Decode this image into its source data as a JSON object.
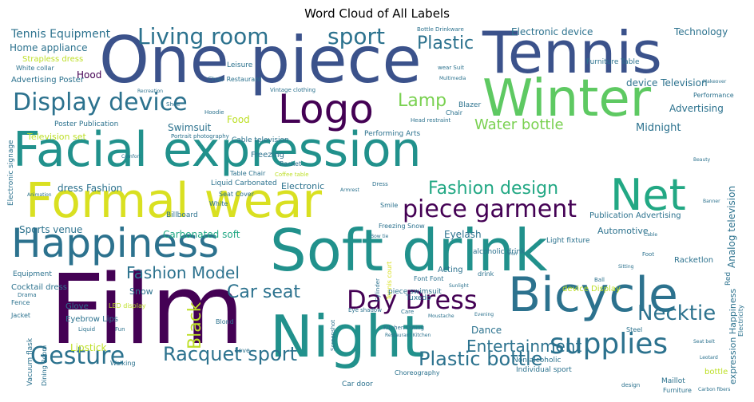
{
  "title": "Word Cloud of All Labels",
  "palette": [
    "#440154",
    "#3b528b",
    "#21918c",
    "#5ec962",
    "#fde725"
  ],
  "words": [
    {
      "text": "Facial expression",
      "color": "#21918c"
    },
    {
      "text": "Soft drink",
      "color": "#21918c"
    },
    {
      "text": "Film",
      "color": "#440154"
    },
    {
      "text": "Night",
      "color": "#21918c"
    },
    {
      "text": "One piece",
      "color": "#3b528b"
    },
    {
      "text": "Tennis",
      "color": "#3b528b"
    },
    {
      "text": "Formal wear",
      "color": "#d9e021"
    },
    {
      "text": "Happiness",
      "color": "#2c728e"
    },
    {
      "text": "Bicycle",
      "color": "#2c728e"
    },
    {
      "text": "Winter",
      "color": "#5ec962"
    },
    {
      "text": "Logo",
      "color": "#440154"
    },
    {
      "text": "Net",
      "color": "#22a884"
    },
    {
      "text": "Display device",
      "color": "#2c728e"
    },
    {
      "text": "Living room",
      "color": "#2c728e"
    },
    {
      "text": "piece garment",
      "color": "#440154"
    },
    {
      "text": "Day Dress",
      "color": "#440154"
    },
    {
      "text": "Gesture",
      "color": "#2c728e"
    },
    {
      "text": "supplies",
      "color": "#2c728e"
    },
    {
      "text": "Racquet sport",
      "color": "#2c728e"
    },
    {
      "text": "Plastic bottle",
      "color": "#2c728e"
    },
    {
      "text": "Fashion design",
      "color": "#22a884"
    },
    {
      "text": "Entertainment",
      "color": "#2c728e"
    },
    {
      "text": "Necktie",
      "color": "#2c728e"
    },
    {
      "text": "Car seat",
      "color": "#2c728e"
    },
    {
      "text": "Fashion Model",
      "color": "#2c728e"
    },
    {
      "text": "sport",
      "color": "#2c728e"
    },
    {
      "text": "Plastic",
      "color": "#2c728e"
    },
    {
      "text": "Lamp",
      "color": "#7ad151"
    },
    {
      "text": "Water bottle",
      "color": "#7ad151"
    },
    {
      "text": "Black",
      "color": "#bddf26"
    },
    {
      "text": "Tennis Equipment",
      "color": "#2c728e"
    },
    {
      "text": "Home appliance",
      "color": "#2c728e"
    },
    {
      "text": "Strapless dress",
      "color": "#bddf26"
    },
    {
      "text": "White collar",
      "color": "#2c728e"
    },
    {
      "text": "Advertising Poster",
      "color": "#2c728e"
    },
    {
      "text": "Hood",
      "color": "#440154"
    },
    {
      "text": "Electronic device",
      "color": "#2c728e"
    },
    {
      "text": "Technology",
      "color": "#2c728e"
    },
    {
      "text": "Advertising",
      "color": "#2c728e"
    },
    {
      "text": "Midnight",
      "color": "#2c728e"
    },
    {
      "text": "device Television",
      "color": "#2c728e"
    },
    {
      "text": "Furniture Table",
      "color": "#2c728e"
    },
    {
      "text": "Performance",
      "color": "#2c728e"
    },
    {
      "text": "Swimsuit",
      "color": "#2c728e"
    },
    {
      "text": "Food",
      "color": "#bddf26"
    },
    {
      "text": "Television set",
      "color": "#bddf26"
    },
    {
      "text": "Poster Publication",
      "color": "#2c728e"
    },
    {
      "text": "Sports venue",
      "color": "#2c728e"
    },
    {
      "text": "dress Fashion",
      "color": "#2c728e"
    },
    {
      "text": "Carbonated soft",
      "color": "#22a884"
    },
    {
      "text": "Equipment",
      "color": "#2c728e"
    },
    {
      "text": "Cocktail dress",
      "color": "#2c728e"
    },
    {
      "text": "Snow",
      "color": "#2c728e"
    },
    {
      "text": "Lipstick",
      "color": "#bddf26"
    },
    {
      "text": "Glove",
      "color": "#2c728e"
    },
    {
      "text": "Eyebrow Lips",
      "color": "#2c728e"
    },
    {
      "text": "Eyelash",
      "color": "#2c728e"
    },
    {
      "text": "Acting",
      "color": "#2c728e"
    },
    {
      "text": "Tuxedo",
      "color": "#2c728e"
    },
    {
      "text": "Dance",
      "color": "#2c728e"
    },
    {
      "text": "Analog television",
      "color": "#2c728e"
    },
    {
      "text": "Publication Advertising",
      "color": "#2c728e"
    },
    {
      "text": "Automotive",
      "color": "#2c728e"
    },
    {
      "text": "Light fixture",
      "color": "#2c728e"
    },
    {
      "text": "expression Happiness",
      "color": "#2c728e"
    },
    {
      "text": "Electronic",
      "color": "#2c728e"
    },
    {
      "text": "Freezing",
      "color": "#2c728e"
    },
    {
      "text": "Cable television",
      "color": "#2c728e"
    },
    {
      "text": "Billboard",
      "color": "#2c728e"
    },
    {
      "text": "Leisure",
      "color": "#2c728e"
    },
    {
      "text": "Blazer",
      "color": "#2c728e"
    },
    {
      "text": "Chair Restaurant",
      "color": "#2c728e"
    },
    {
      "text": "Vintage clothing",
      "color": "#2c728e"
    },
    {
      "text": "Performing Arts",
      "color": "#2c728e"
    },
    {
      "text": "Racket",
      "color": "#2c728e"
    },
    {
      "text": "Table Chair",
      "color": "#2c728e"
    },
    {
      "text": "Liquid Carbonated",
      "color": "#2c728e"
    },
    {
      "text": "Seat Cover",
      "color": "#2c728e"
    },
    {
      "text": "White",
      "color": "#2c728e"
    },
    {
      "text": "Freezing Snow",
      "color": "#2c728e"
    },
    {
      "text": "Blond",
      "color": "#2c728e"
    },
    {
      "text": "Walking",
      "color": "#2c728e"
    },
    {
      "text": "Love",
      "color": "#2c728e"
    },
    {
      "text": "Car door",
      "color": "#2c728e"
    },
    {
      "text": "Choreography",
      "color": "#2c728e"
    },
    {
      "text": "Maillot",
      "color": "#2c728e"
    },
    {
      "text": "Furniture",
      "color": "#2c728e"
    },
    {
      "text": "Vacuum flask",
      "color": "#2c728e"
    },
    {
      "text": "Dining Room",
      "color": "#2c728e"
    },
    {
      "text": "Fence",
      "color": "#2c728e"
    },
    {
      "text": "Jacket",
      "color": "#2c728e"
    },
    {
      "text": "Drama",
      "color": "#2c728e"
    },
    {
      "text": "Fun",
      "color": "#2c728e"
    },
    {
      "text": "Liquid",
      "color": "#2c728e"
    },
    {
      "text": "LED display",
      "color": "#bddf26"
    },
    {
      "text": "Kitchen Dining",
      "color": "#2c728e"
    },
    {
      "text": "Individual sport",
      "color": "#2c728e"
    },
    {
      "text": "Non alcoholic",
      "color": "#2c728e"
    },
    {
      "text": "piece swimsuit",
      "color": "#2c728e"
    },
    {
      "text": "Font Font",
      "color": "#2c728e"
    },
    {
      "text": "alcoholic drink",
      "color": "#2c728e"
    },
    {
      "text": "Racketlon",
      "color": "#2c728e"
    },
    {
      "text": "device Display",
      "color": "#bddf26"
    },
    {
      "text": "bottle",
      "color": "#2c728e"
    },
    {
      "text": "Steel",
      "color": "#2c728e"
    },
    {
      "text": "Hoodie",
      "color": "#2c728e"
    },
    {
      "text": "Shoe",
      "color": "#2c728e"
    },
    {
      "text": "Electronic signage",
      "color": "#2c728e"
    },
    {
      "text": "Animation",
      "color": "#2c728e"
    },
    {
      "text": "Comfort",
      "color": "#2c728e"
    },
    {
      "text": "Recreation",
      "color": "#2c728e"
    },
    {
      "text": "Portrait photography",
      "color": "#2c728e"
    },
    {
      "text": "Bottle Drinkware",
      "color": "#2c728e"
    },
    {
      "text": "wear Suit",
      "color": "#2c728e"
    },
    {
      "text": "Multimedia",
      "color": "#2c728e"
    },
    {
      "text": "Makeover",
      "color": "#2c728e"
    },
    {
      "text": "Tennis court",
      "color": "#2c728e"
    },
    {
      "text": "Smile",
      "color": "#2c728e"
    },
    {
      "text": "Eye shadow",
      "color": "#2c728e"
    },
    {
      "text": "Screenshot",
      "color": "#2c728e"
    },
    {
      "text": "Evening",
      "color": "#2c728e"
    },
    {
      "text": "Cylinder",
      "color": "#2c728e"
    },
    {
      "text": "Care",
      "color": "#2c728e"
    },
    {
      "text": "Sunlight",
      "color": "#2c728e"
    },
    {
      "text": "Ball",
      "color": "#2c728e"
    },
    {
      "text": "Foot",
      "color": "#2c728e"
    },
    {
      "text": "Sitting",
      "color": "#2c728e"
    },
    {
      "text": "Iron",
      "color": "#2c728e"
    },
    {
      "text": "Banner",
      "color": "#2c728e"
    },
    {
      "text": "Beauty",
      "color": "#2c728e"
    },
    {
      "text": "design",
      "color": "#2c728e"
    },
    {
      "text": "Red",
      "color": "#2c728e"
    },
    {
      "text": "Leotard",
      "color": "#2c728e"
    },
    {
      "text": "Carbon fibers",
      "color": "#2c728e"
    },
    {
      "text": "Seat belt",
      "color": "#2c728e"
    },
    {
      "text": "Electricity",
      "color": "#2c728e"
    },
    {
      "text": "Head restraint",
      "color": "#2c728e"
    },
    {
      "text": "Chair",
      "color": "#2c728e"
    },
    {
      "text": "Cable",
      "color": "#2c728e"
    },
    {
      "text": "Moustache",
      "color": "#2c728e"
    },
    {
      "text": "Restaurant Kitchen",
      "color": "#2c728e"
    },
    {
      "text": "Bow tie",
      "color": "#2c728e"
    },
    {
      "text": "Coffee table",
      "color": "#2c728e"
    },
    {
      "text": "Armrest",
      "color": "#2c728e"
    },
    {
      "text": "Dress",
      "color": "#2c728e"
    },
    {
      "text": "drink",
      "color": "#2c728e"
    }
  ]
}
